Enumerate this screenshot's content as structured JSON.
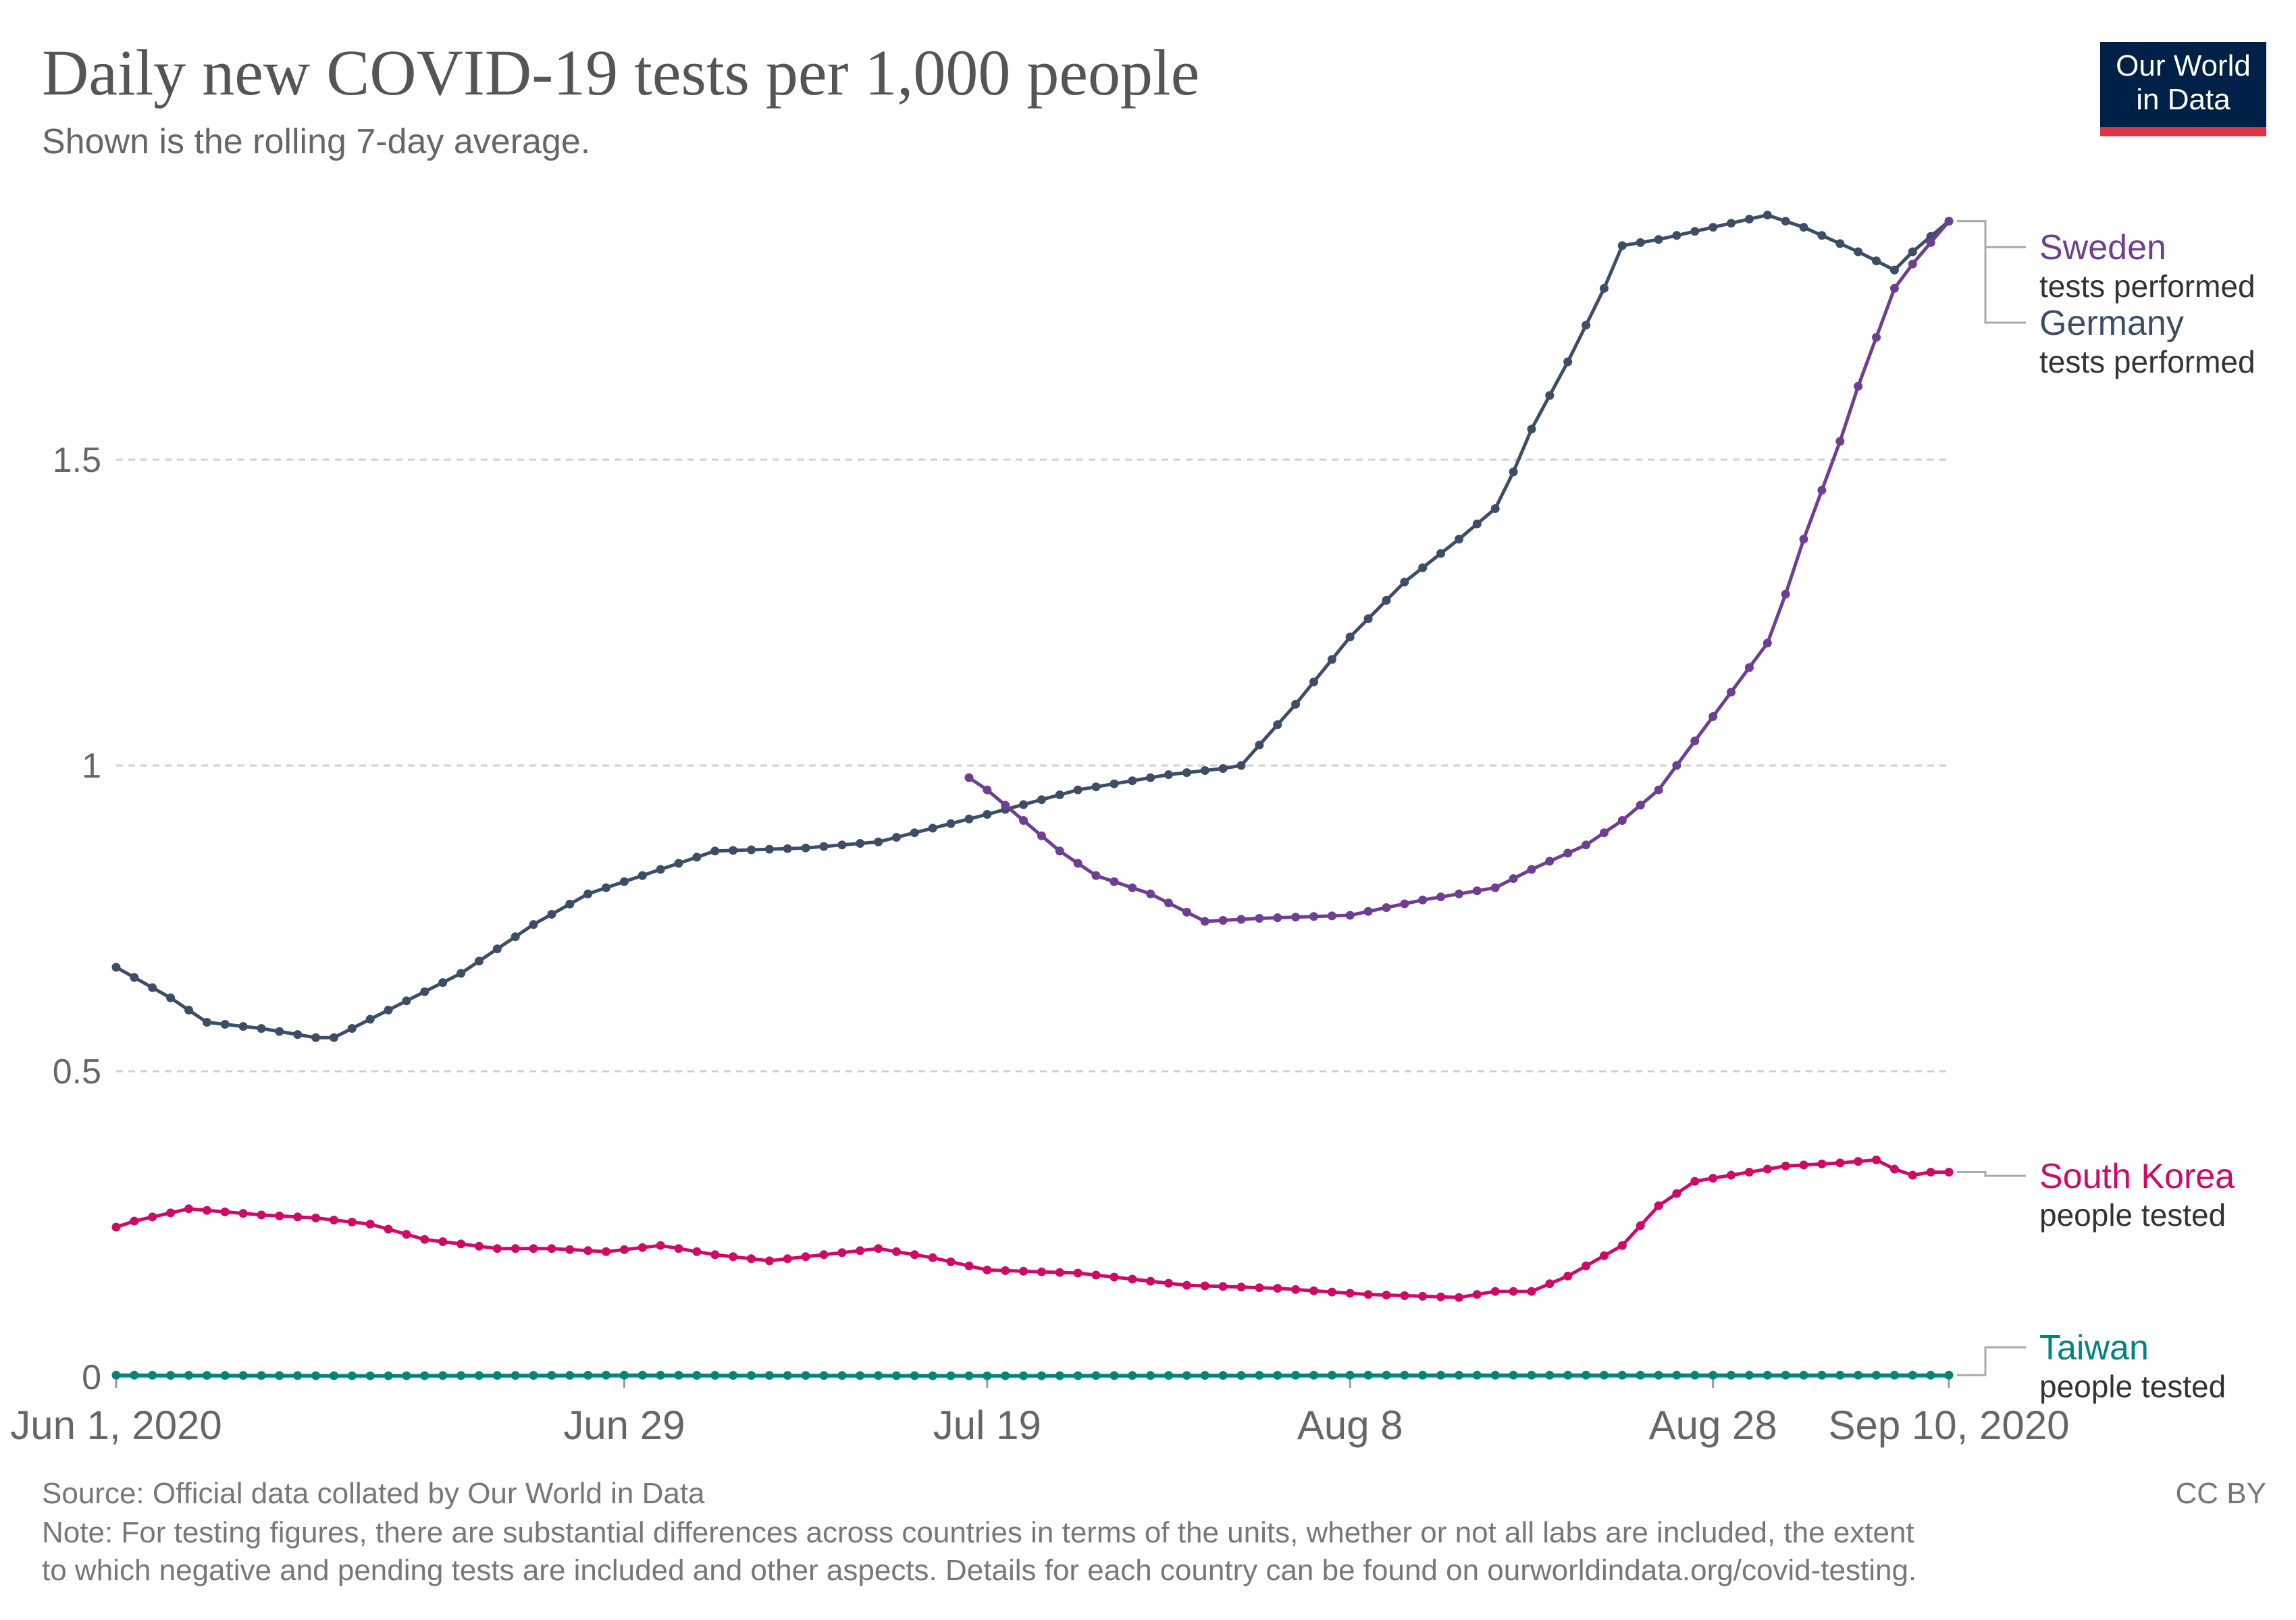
{
  "title": "Daily new COVID-19 tests per 1,000 people",
  "subtitle": "Shown is the rolling 7-day average.",
  "logo": {
    "line1": "Our World",
    "line2": "in Data",
    "colors": {
      "background": "#002147",
      "bar": "#dc3545"
    }
  },
  "footer": {
    "source": "Source: Official data collated by Our World in Data",
    "license": "CC BY",
    "note_lines": [
      "Note: For testing figures, there are substantial differences across countries in terms of the units, whether or not all labs are included, the extent",
      "to which negative and pending tests are included and other aspects. Details for each country can be found on ourworldindata.org/covid-testing."
    ]
  },
  "chart_data": {
    "type": "line",
    "title": "Daily new COVID-19 tests per 1,000 people",
    "subtitle": "Shown is the rolling 7-day average.",
    "x_start": "2020-06-01",
    "x_end": "2020-09-10",
    "x_ticks": [
      {
        "date": "2020-06-01",
        "label": "Jun 1, 2020"
      },
      {
        "date": "2020-06-29",
        "label": "Jun 29"
      },
      {
        "date": "2020-07-19",
        "label": "Jul 19"
      },
      {
        "date": "2020-08-08",
        "label": "Aug 8"
      },
      {
        "date": "2020-08-28",
        "label": "Aug 28"
      },
      {
        "date": "2020-09-10",
        "label": "Sep 10, 2020"
      }
    ],
    "y_ticks": [
      {
        "value": 0,
        "label": "0"
      },
      {
        "value": 0.5,
        "label": "0.5"
      },
      {
        "value": 1,
        "label": "1"
      },
      {
        "value": 1.5,
        "label": "1.5"
      }
    ],
    "ylim": [
      0,
      1.9
    ],
    "grid": "horizontal dashed",
    "legend": "right, at line ends",
    "series": [
      {
        "name": "Germany",
        "unit_label": "tests performed",
        "color": "#3c4e66",
        "points": [
          [
            "2020-06-01",
            0.67
          ],
          [
            "2020-06-04",
            0.62
          ],
          [
            "2020-06-06",
            0.58
          ],
          [
            "2020-06-09",
            0.57
          ],
          [
            "2020-06-12",
            0.555
          ],
          [
            "2020-06-13",
            0.555
          ],
          [
            "2020-06-16",
            0.6
          ],
          [
            "2020-06-20",
            0.66
          ],
          [
            "2020-06-24",
            0.74
          ],
          [
            "2020-06-27",
            0.79
          ],
          [
            "2020-06-30",
            0.82
          ],
          [
            "2020-07-04",
            0.86
          ],
          [
            "2020-07-09",
            0.865
          ],
          [
            "2020-07-13",
            0.875
          ],
          [
            "2020-07-19",
            0.92
          ],
          [
            "2020-07-24",
            0.96
          ],
          [
            "2020-07-29",
            0.985
          ],
          [
            "2020-08-01",
            0.995
          ],
          [
            "2020-08-02",
            1.0
          ],
          [
            "2020-08-05",
            1.1
          ],
          [
            "2020-08-08",
            1.21
          ],
          [
            "2020-08-11",
            1.3
          ],
          [
            "2020-08-14",
            1.37
          ],
          [
            "2020-08-16",
            1.42
          ],
          [
            "2020-08-17",
            1.48
          ],
          [
            "2020-08-18",
            1.55
          ],
          [
            "2020-08-20",
            1.66
          ],
          [
            "2020-08-22",
            1.78
          ],
          [
            "2020-08-23",
            1.85
          ],
          [
            "2020-08-25",
            1.86
          ],
          [
            "2020-08-28",
            1.88
          ],
          [
            "2020-08-31",
            1.9
          ],
          [
            "2020-09-02",
            1.88
          ],
          [
            "2020-09-05",
            1.84
          ],
          [
            "2020-09-07",
            1.81
          ],
          [
            "2020-09-08",
            1.84
          ],
          [
            "2020-09-10",
            1.89
          ]
        ]
      },
      {
        "name": "Sweden",
        "unit_label": "tests performed",
        "color": "#6d3e91",
        "points": [
          [
            "2020-07-18",
            0.98
          ],
          [
            "2020-07-19",
            0.96
          ],
          [
            "2020-07-21",
            0.91
          ],
          [
            "2020-07-23",
            0.86
          ],
          [
            "2020-07-25",
            0.82
          ],
          [
            "2020-07-28",
            0.79
          ],
          [
            "2020-07-30",
            0.76
          ],
          [
            "2020-07-31",
            0.745
          ],
          [
            "2020-08-03",
            0.75
          ],
          [
            "2020-08-08",
            0.755
          ],
          [
            "2020-08-12",
            0.78
          ],
          [
            "2020-08-16",
            0.8
          ],
          [
            "2020-08-18",
            0.83
          ],
          [
            "2020-08-21",
            0.87
          ],
          [
            "2020-08-23",
            0.91
          ],
          [
            "2020-08-25",
            0.96
          ],
          [
            "2020-08-27",
            1.04
          ],
          [
            "2020-08-29",
            1.12
          ],
          [
            "2020-08-31",
            1.2
          ],
          [
            "2020-09-01",
            1.28
          ],
          [
            "2020-09-02",
            1.37
          ],
          [
            "2020-09-03",
            1.45
          ],
          [
            "2020-09-04",
            1.53
          ],
          [
            "2020-09-05",
            1.62
          ],
          [
            "2020-09-06",
            1.7
          ],
          [
            "2020-09-07",
            1.78
          ],
          [
            "2020-09-08",
            1.82
          ],
          [
            "2020-09-10",
            1.89
          ]
        ]
      },
      {
        "name": "South Korea",
        "unit_label": "people tested",
        "color": "#cf0a66",
        "points": [
          [
            "2020-06-01",
            0.245
          ],
          [
            "2020-06-02",
            0.255
          ],
          [
            "2020-06-05",
            0.275
          ],
          [
            "2020-06-09",
            0.265
          ],
          [
            "2020-06-12",
            0.26
          ],
          [
            "2020-06-15",
            0.25
          ],
          [
            "2020-06-18",
            0.225
          ],
          [
            "2020-06-22",
            0.21
          ],
          [
            "2020-06-25",
            0.21
          ],
          [
            "2020-06-28",
            0.205
          ],
          [
            "2020-07-01",
            0.215
          ],
          [
            "2020-07-04",
            0.2
          ],
          [
            "2020-07-07",
            0.19
          ],
          [
            "2020-07-10",
            0.2
          ],
          [
            "2020-07-13",
            0.21
          ],
          [
            "2020-07-16",
            0.195
          ],
          [
            "2020-07-19",
            0.175
          ],
          [
            "2020-07-24",
            0.17
          ],
          [
            "2020-07-30",
            0.15
          ],
          [
            "2020-08-04",
            0.145
          ],
          [
            "2020-08-09",
            0.135
          ],
          [
            "2020-08-14",
            0.13
          ],
          [
            "2020-08-16",
            0.14
          ],
          [
            "2020-08-18",
            0.14
          ],
          [
            "2020-08-20",
            0.165
          ],
          [
            "2020-08-23",
            0.215
          ],
          [
            "2020-08-25",
            0.28
          ],
          [
            "2020-08-27",
            0.32
          ],
          [
            "2020-08-29",
            0.33
          ],
          [
            "2020-09-01",
            0.345
          ],
          [
            "2020-09-04",
            0.35
          ],
          [
            "2020-09-06",
            0.355
          ],
          [
            "2020-09-07",
            0.34
          ],
          [
            "2020-09-08",
            0.33
          ],
          [
            "2020-09-09",
            0.335
          ],
          [
            "2020-09-10",
            0.335
          ]
        ]
      },
      {
        "name": "Taiwan",
        "unit_label": "people tested",
        "color": "#00847e",
        "points": [
          [
            "2020-06-01",
            0.003
          ],
          [
            "2020-06-15",
            0.002
          ],
          [
            "2020-06-29",
            0.003
          ],
          [
            "2020-07-19",
            0.002
          ],
          [
            "2020-08-08",
            0.003
          ],
          [
            "2020-08-28",
            0.003
          ],
          [
            "2020-09-10",
            0.003
          ]
        ]
      }
    ]
  }
}
